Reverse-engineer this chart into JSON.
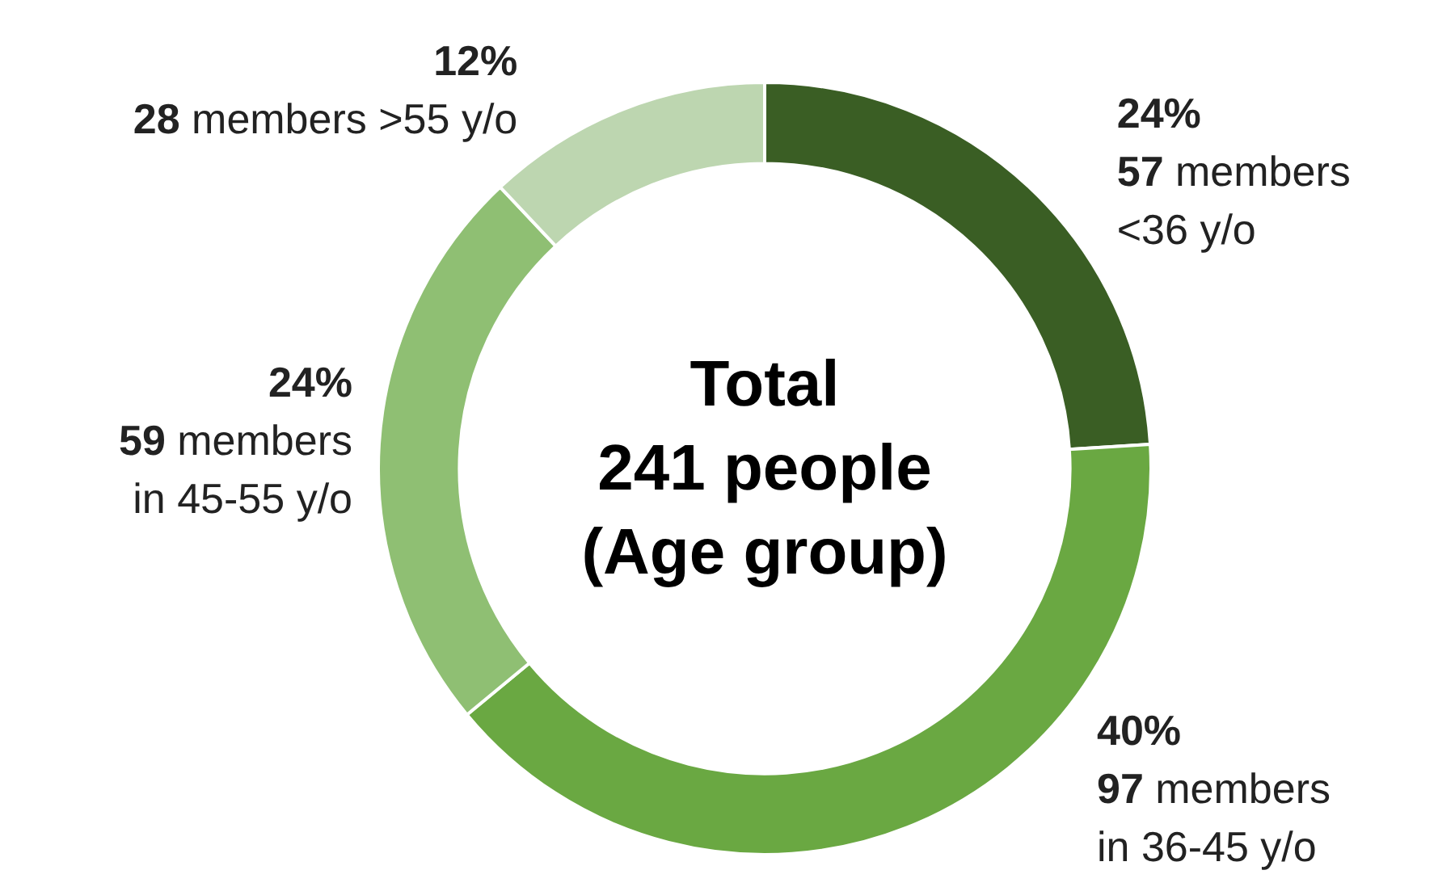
{
  "chart_data": {
    "type": "donut",
    "title": "Total\n241 people\n(Age group)",
    "categories": [
      "57 members\n<36 y/o",
      "97 members\nin 36-45 y/o",
      "59 members\nin 45-55 y/o",
      "28 members >55 y/o"
    ],
    "values": [
      24,
      40,
      24,
      12
    ],
    "value_labels": [
      "24%",
      "40%",
      "24%",
      "12%"
    ],
    "colors": [
      "#3a5e24",
      "#6aa842",
      "#8fbf73",
      "#bdd6b0"
    ],
    "legend": false
  }
}
